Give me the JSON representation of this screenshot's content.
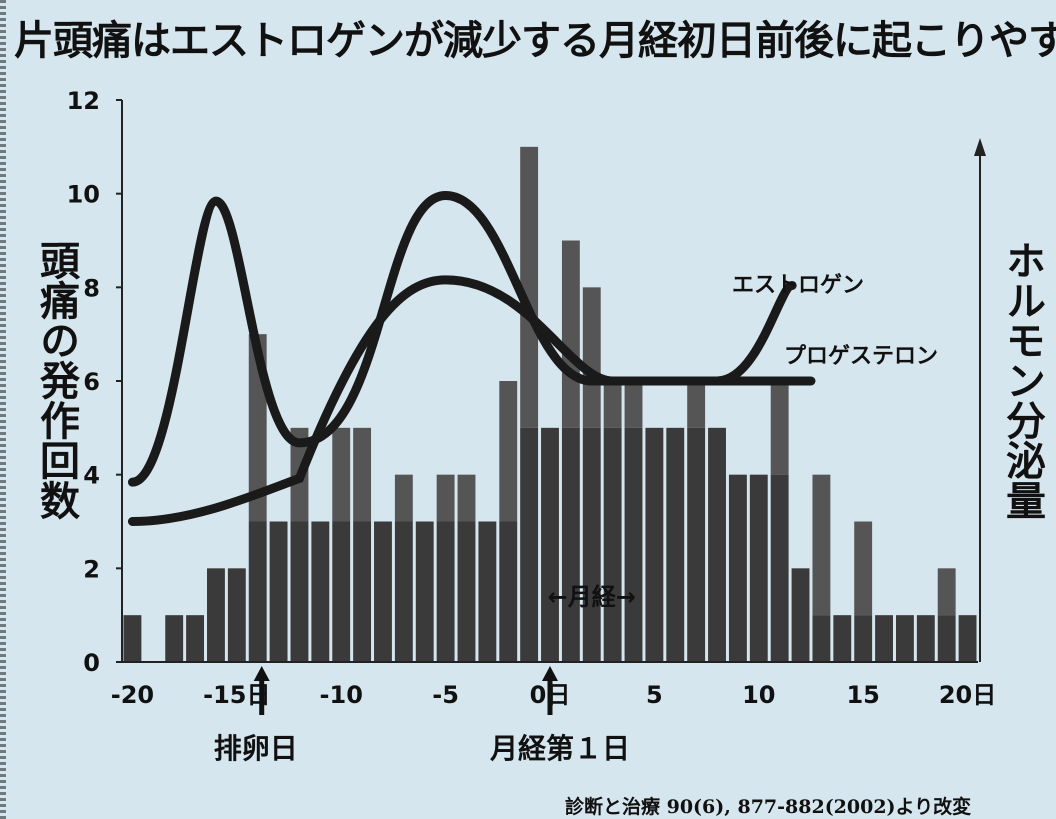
{
  "title": "片頭痛はエストロゲンが減少する月経初日前後に起こりやすい",
  "source": "診断と治療 90(6), 877-882(2002)より改変",
  "chart_data": {
    "type": "bar",
    "title": "片頭痛はエストロゲンが減少する月経初日前後に起こりやすい",
    "ylabel": "頭痛の発作回数",
    "y2label": "ホルモン分泌量",
    "xlim": [
      -20,
      20
    ],
    "ylim": [
      0,
      12
    ],
    "x_ticks": [
      {
        "value": -20,
        "label": "-20"
      },
      {
        "value": -15,
        "label": "-15日"
      },
      {
        "value": -10,
        "label": "-10"
      },
      {
        "value": -5,
        "label": "-5"
      },
      {
        "value": 0,
        "label": "0日"
      },
      {
        "value": 5,
        "label": "5"
      },
      {
        "value": 10,
        "label": "10"
      },
      {
        "value": 15,
        "label": "15"
      },
      {
        "value": 20,
        "label": "20日"
      }
    ],
    "y_ticks": [
      0,
      2,
      4,
      6,
      8,
      10,
      12
    ],
    "days": [
      -20,
      -19,
      -18,
      -17,
      -16,
      -15,
      -14,
      -13,
      -12,
      -11,
      -10,
      -9,
      -8,
      -7,
      -6,
      -5,
      -4,
      -3,
      -2,
      -1,
      0,
      1,
      2,
      3,
      4,
      5,
      6,
      7,
      8,
      9,
      10,
      11,
      12,
      13,
      14,
      15,
      16,
      17,
      18,
      19,
      20
    ],
    "layers": [
      {
        "name": "bottom",
        "values": [
          1,
          0,
          1,
          1,
          2,
          2,
          3,
          3,
          3,
          3,
          3,
          3,
          3,
          3,
          3,
          3,
          3,
          3,
          3,
          5,
          5,
          5,
          5,
          5,
          5,
          5,
          5,
          5,
          5,
          4,
          4,
          4,
          2,
          1,
          1,
          1,
          1,
          1,
          1,
          1,
          1
        ]
      },
      {
        "name": "top",
        "values": [
          1,
          0,
          1,
          1,
          2,
          2,
          7,
          3,
          5,
          3,
          5,
          5,
          3,
          4,
          3,
          4,
          4,
          3,
          6,
          11,
          5,
          9,
          8,
          6,
          6,
          5,
          5,
          6,
          5,
          4,
          4,
          6,
          2,
          4,
          1,
          3,
          1,
          1,
          1,
          2,
          1
        ]
      }
    ],
    "series": [
      {
        "name": "エストロゲン",
        "type": "line",
        "color": "#1a1a1a",
        "relative_values": [
          0.32,
          0.82,
          0.39,
          0.83,
          0.5,
          0.5,
          0.67
        ]
      },
      {
        "name": "プロゲステロン",
        "type": "line",
        "color": "#1a1a1a",
        "relative_values": [
          0.25,
          0.3,
          0.68,
          0.5,
          0.5
        ]
      }
    ],
    "annotations": [
      {
        "day": -14,
        "text": "排卵日"
      },
      {
        "day": 0,
        "text": "月経第１日"
      },
      {
        "day": 2,
        "text": "←月経→"
      }
    ],
    "colors": {
      "bar": "#555555",
      "bar_dark": "#3a3a3a",
      "curve": "#1a1a1a",
      "background": "#d6e6ee"
    }
  }
}
